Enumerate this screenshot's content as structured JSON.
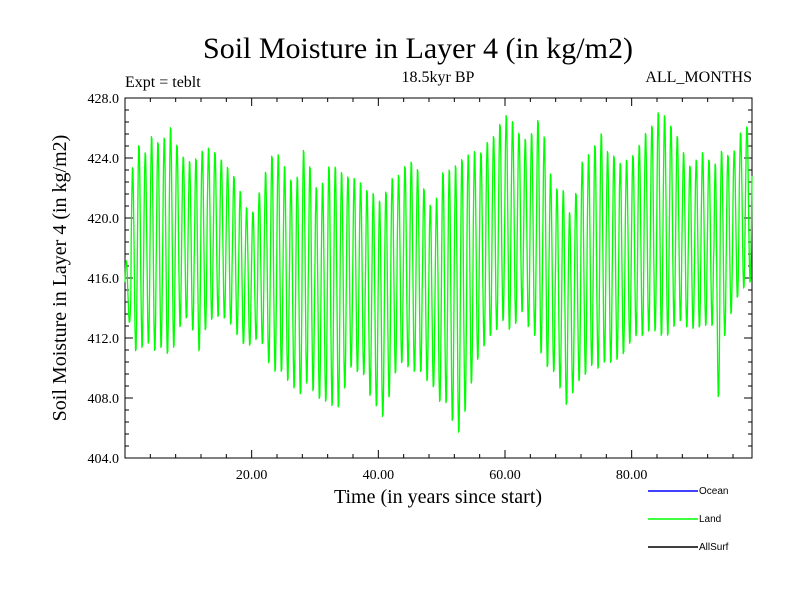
{
  "chart_data": {
    "type": "line",
    "title": "Soil Moisture in Layer 4 (in kg/m2)",
    "subtitle_left": "Expt = teblt",
    "subtitle_center": "18.5kyr BP",
    "subtitle_right": "ALL_MONTHS",
    "xlabel": "Time (in years since start)",
    "ylabel": "Soil Moisture in Layer 4 (in kg/m2)",
    "xlim": [
      0,
      99
    ],
    "ylim": [
      404.0,
      428.0
    ],
    "xticks": [
      20,
      40,
      60,
      80
    ],
    "xtick_labels": [
      "20.00",
      "40.00",
      "60.00",
      "80.00"
    ],
    "yticks": [
      404,
      408,
      412,
      416,
      420,
      424,
      428
    ],
    "ytick_labels": [
      "404.0",
      "408.0",
      "412.0",
      "416.0",
      "420.0",
      "424.0",
      "428.0"
    ],
    "legend": [
      {
        "name": "Ocean",
        "color": "#0000ff"
      },
      {
        "name": "Land",
        "color": "#00ff00"
      },
      {
        "name": "AllSurf",
        "color": "#000000"
      }
    ],
    "legend_position": "bottom-right",
    "series": [
      {
        "name": "Land",
        "color": "#00ff00",
        "x": [
          0,
          1,
          2,
          3,
          4,
          5,
          6,
          7,
          8,
          9,
          10,
          11,
          12,
          13,
          14,
          15,
          16,
          17,
          18,
          19,
          20,
          21,
          22,
          23,
          24,
          25,
          26,
          27,
          28,
          29,
          30,
          31,
          32,
          33,
          34,
          35,
          36,
          37,
          38,
          39,
          40,
          41,
          42,
          43,
          44,
          45,
          46,
          47,
          48,
          49,
          50,
          51,
          52,
          53,
          54,
          55,
          56,
          57,
          58,
          59,
          60,
          61,
          62,
          63,
          64,
          65,
          66,
          67,
          68,
          69,
          70,
          71,
          72,
          73,
          74,
          75,
          76,
          77,
          78,
          79,
          80,
          81,
          82,
          83,
          84,
          85,
          86,
          87,
          88,
          89,
          90,
          91,
          92,
          93,
          94,
          95,
          96,
          97,
          98,
          99
        ],
        "high": [
          417.2,
          423.5,
          425.0,
          424.5,
          425.6,
          425.2,
          425.5,
          426.2,
          425.0,
          424.2,
          423.9,
          424.1,
          424.6,
          424.8,
          424.5,
          424.0,
          423.5,
          422.9,
          421.9,
          420.8,
          420.5,
          421.8,
          423.2,
          424.3,
          424.4,
          423.6,
          422.7,
          422.9,
          424.7,
          423.6,
          422.2,
          422.5,
          423.6,
          423.6,
          423.2,
          422.9,
          422.8,
          422.5,
          422.0,
          421.8,
          421.3,
          421.9,
          422.8,
          423.0,
          423.6,
          423.9,
          423.4,
          422.1,
          421.0,
          421.5,
          423.2,
          423.4,
          423.7,
          424.1,
          424.4,
          424.6,
          424.5,
          425.2,
          425.6,
          426.4,
          427.0,
          426.6,
          425.8,
          425.4,
          425.8,
          426.7,
          425.6,
          423.1,
          422.1,
          422.0,
          420.5,
          421.8,
          423.9,
          424.4,
          425.0,
          425.8,
          424.6,
          424.3,
          423.8,
          424.0,
          424.3,
          425.0,
          425.8,
          426.3,
          427.2,
          427.0,
          426.3,
          425.6,
          424.5,
          423.6,
          424.0,
          424.5,
          424.0,
          423.8,
          424.6,
          424.3,
          424.6,
          425.8,
          426.2,
          426.5
        ],
        "low": [
          413.0,
          411.0,
          411.2,
          411.5,
          411.0,
          411.2,
          410.8,
          411.2,
          412.6,
          413.2,
          412.4,
          411.0,
          412.4,
          413.1,
          413.3,
          413.2,
          412.8,
          412.1,
          411.5,
          411.4,
          411.8,
          411.5,
          410.2,
          409.6,
          409.6,
          409.0,
          408.5,
          408.1,
          408.8,
          408.3,
          407.8,
          407.6,
          407.3,
          407.2,
          408.5,
          409.9,
          409.6,
          409.4,
          408.0,
          407.3,
          406.6,
          407.9,
          409.5,
          410.2,
          409.9,
          409.6,
          409.6,
          409.0,
          408.6,
          407.6,
          407.5,
          406.3,
          405.5,
          406.9,
          408.8,
          410.4,
          411.3,
          412.0,
          412.4,
          413.0,
          412.4,
          412.8,
          413.6,
          412.6,
          412.0,
          410.8,
          409.9,
          409.6,
          408.5,
          407.4,
          408.2,
          409.0,
          409.4,
          410.0,
          409.8,
          410.2,
          410.2,
          410.4,
          410.8,
          411.5,
          412.0,
          412.0,
          412.3,
          412.3,
          412.0,
          412.0,
          412.6,
          413.0,
          412.6,
          412.5,
          412.6,
          412.7,
          412.7,
          407.9,
          412.0,
          413.5,
          414.6,
          415.2,
          415.6,
          416.0
        ]
      }
    ]
  }
}
